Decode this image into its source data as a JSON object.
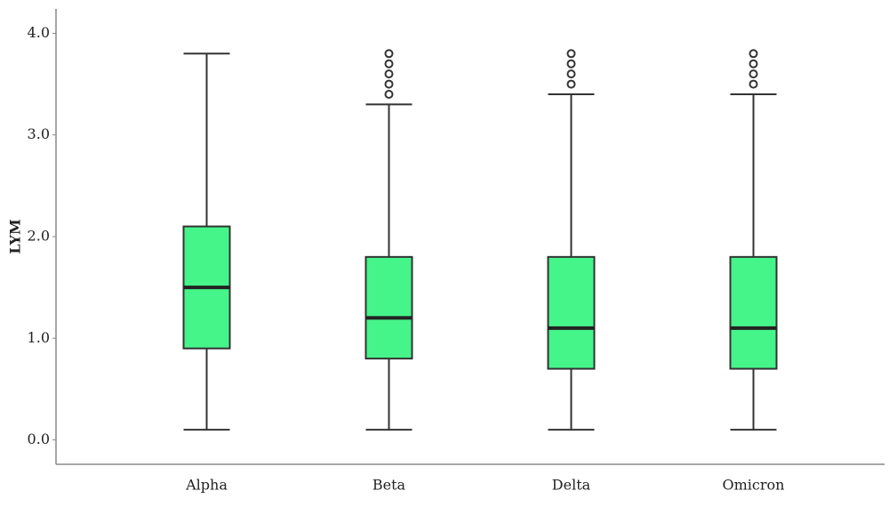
{
  "chart_data": {
    "type": "box",
    "y_label": "LYM",
    "categories": [
      "Alpha",
      "Beta",
      "Delta",
      "Omicron"
    ],
    "color": "#45f58a",
    "boxes": [
      {
        "min": 0.1,
        "q1": 0.9,
        "median": 1.5,
        "q3": 2.1,
        "max": 3.8,
        "outliers": []
      },
      {
        "min": 0.1,
        "q1": 0.8,
        "median": 1.2,
        "q3": 1.8,
        "max": 3.3,
        "outliers": [
          3.4,
          3.5,
          3.6,
          3.7,
          3.8
        ]
      },
      {
        "min": 0.1,
        "q1": 0.7,
        "median": 1.1,
        "q3": 1.8,
        "max": 3.4,
        "outliers": [
          3.5,
          3.6,
          3.7,
          3.8
        ]
      },
      {
        "min": 0.1,
        "q1": 0.7,
        "median": 1.1,
        "q3": 1.8,
        "max": 3.4,
        "outliers": [
          3.5,
          3.6,
          3.7,
          3.8
        ]
      }
    ],
    "ylim": [
      -0.24,
      4.24
    ],
    "yticks": [
      {
        "value": 0,
        "label": "0.0"
      },
      {
        "value": 1,
        "label": "1.0"
      },
      {
        "value": 2,
        "label": "2.0"
      },
      {
        "value": 3,
        "label": "3.0"
      },
      {
        "value": 4,
        "label": "4.0"
      }
    ]
  }
}
